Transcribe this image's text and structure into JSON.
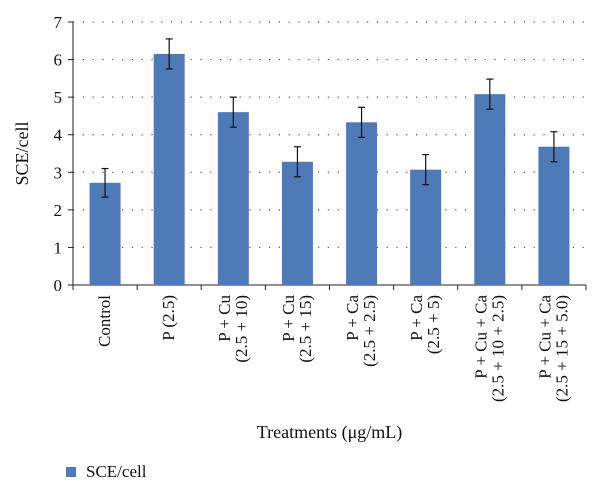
{
  "chart_data": {
    "type": "bar",
    "title": "",
    "xlabel": "Treatments (μg/mL)",
    "ylabel": "SCE/cell",
    "ylim": [
      0,
      7
    ],
    "yticks": [
      0,
      1,
      2,
      3,
      4,
      5,
      6,
      7
    ],
    "grid": true,
    "legend_position": "bottom-left",
    "categories": [
      [
        "Control"
      ],
      [
        "P (2.5)"
      ],
      [
        "P + Cu",
        "(2.5 + 10)"
      ],
      [
        "P + Cu",
        "(2.5 + 15)"
      ],
      [
        "P + Ca",
        "(2.5 + 2.5)"
      ],
      [
        "P + Ca",
        "(2.5 + 5)"
      ],
      [
        "P + Cu + Ca",
        "(2.5 + 10 + 2.5)"
      ],
      [
        "P + Cu + Ca",
        "(2.5 + 15 + 5.0)"
      ]
    ],
    "series": [
      {
        "name": "SCE/cell",
        "color": "#4f7ab8",
        "values": [
          2.72,
          6.15,
          4.6,
          3.28,
          4.33,
          3.07,
          5.08,
          3.68
        ],
        "errors": [
          0.38,
          0.4,
          0.4,
          0.4,
          0.4,
          0.4,
          0.4,
          0.4
        ]
      }
    ]
  }
}
